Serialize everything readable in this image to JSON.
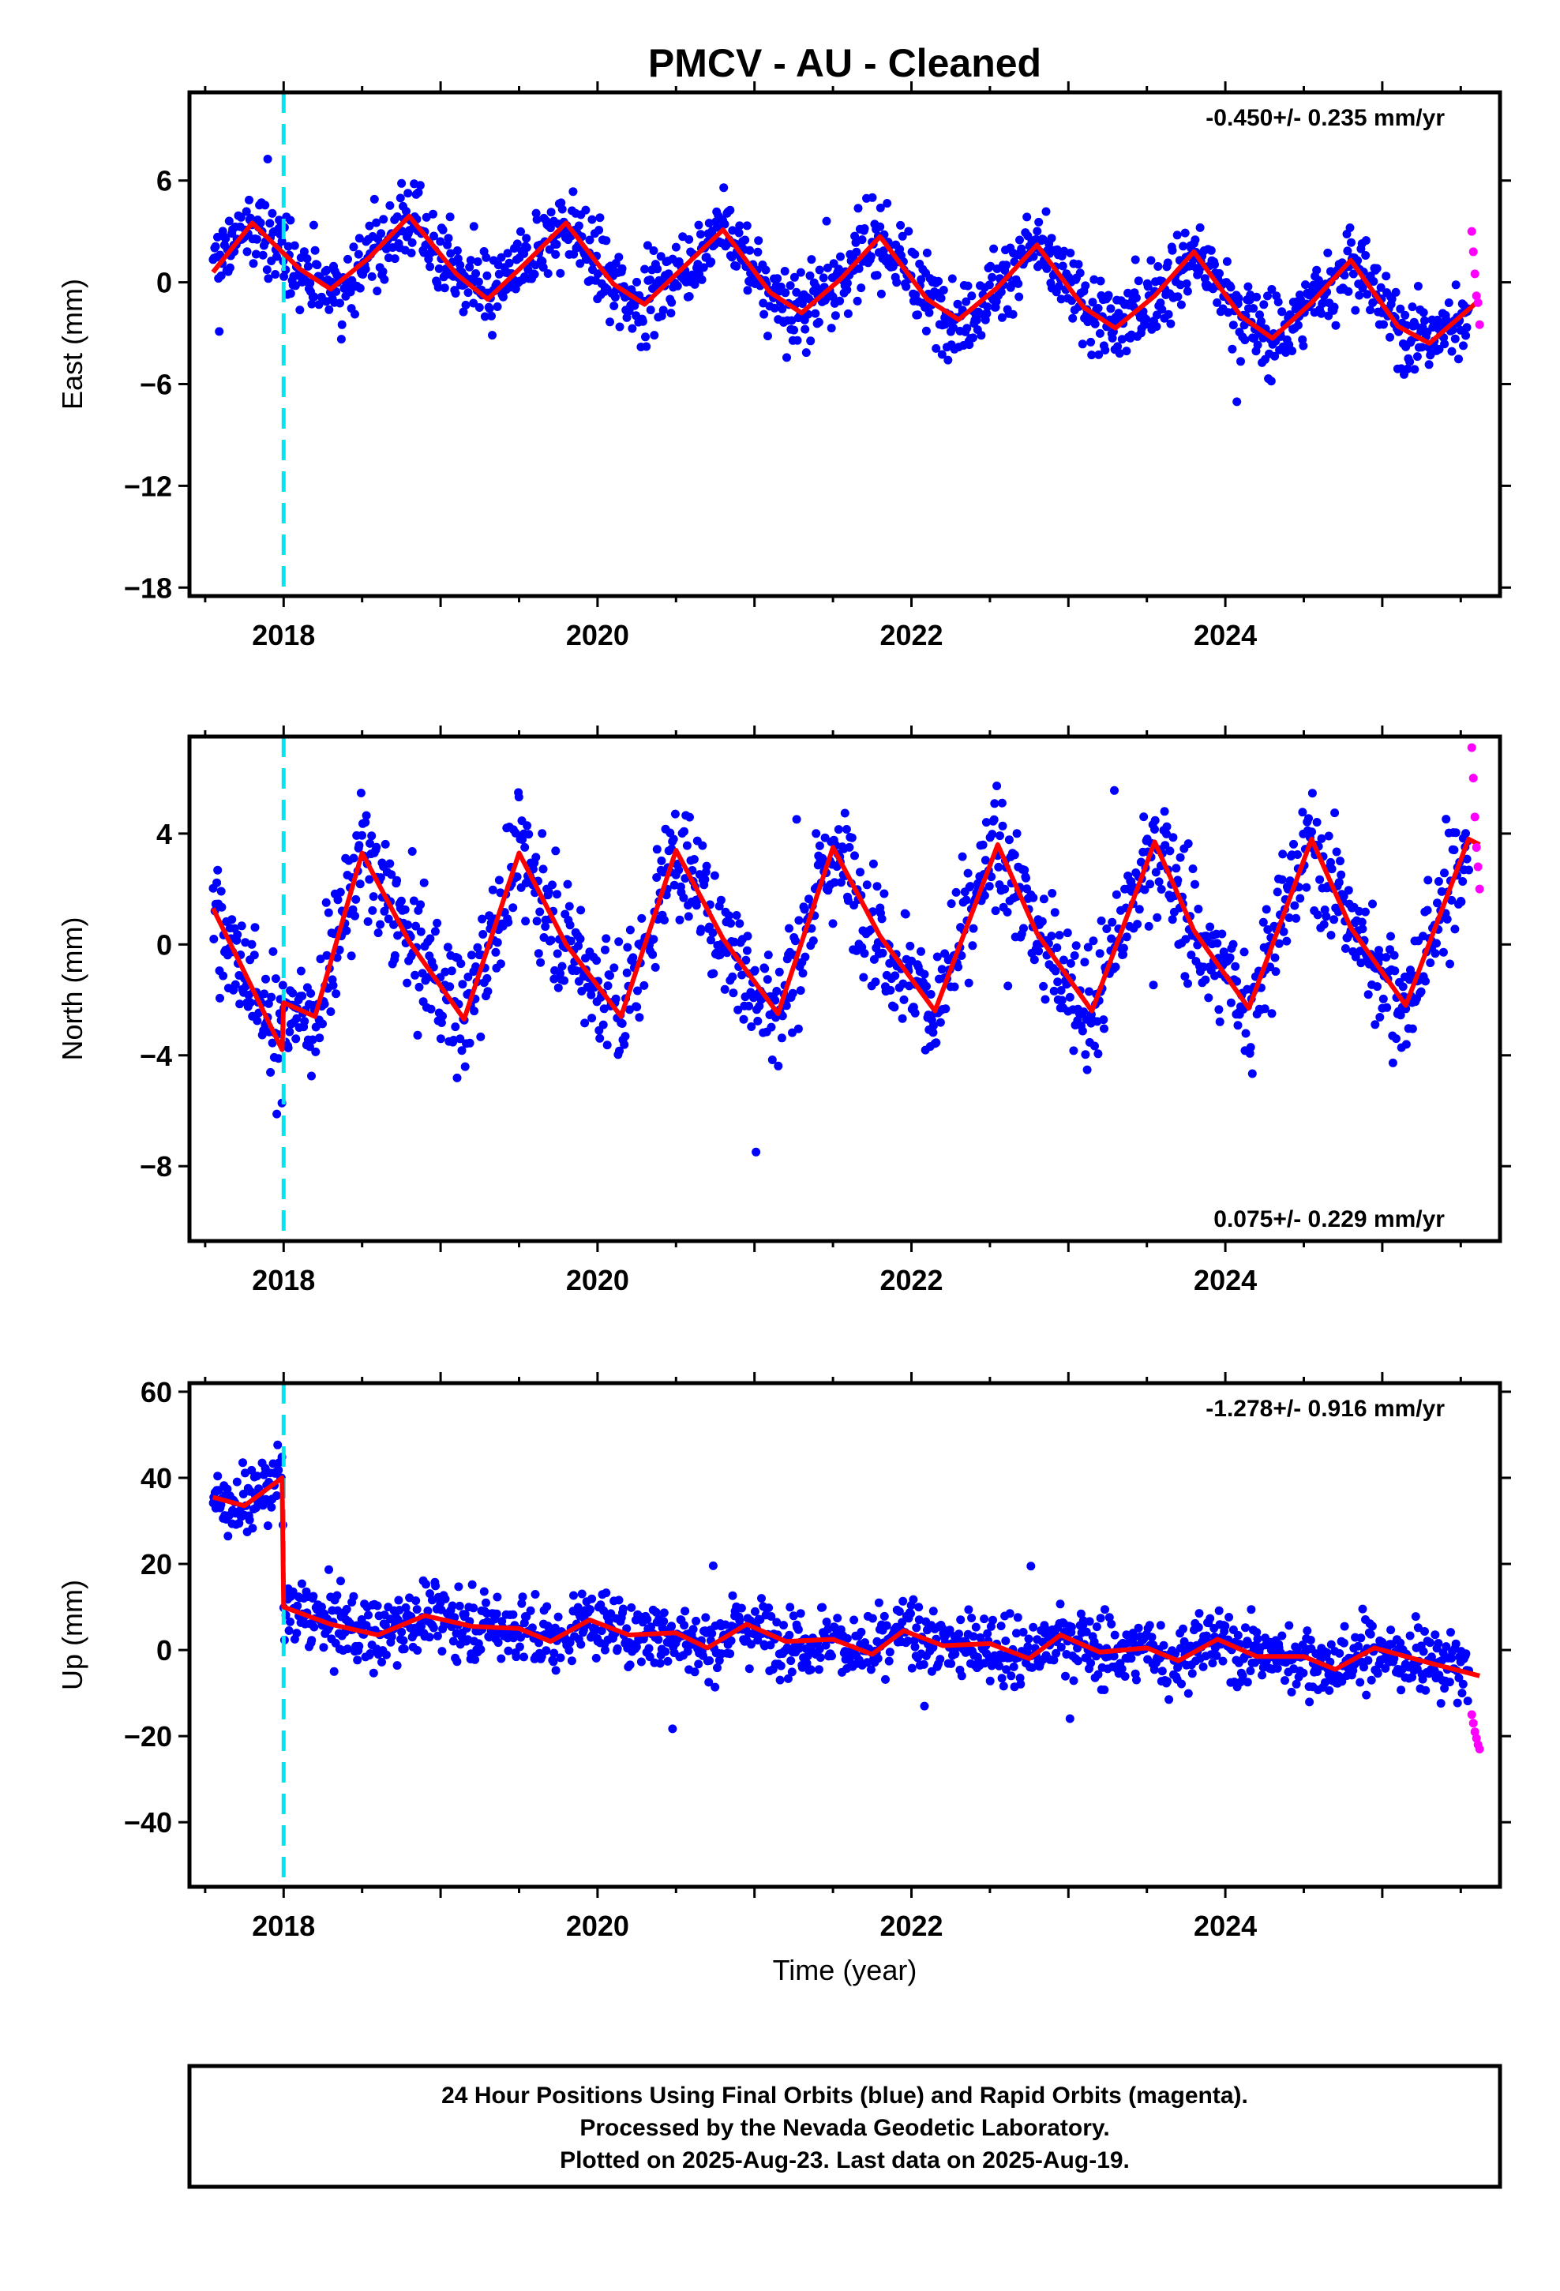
{
  "title": "PMCV  - AU - Cleaned",
  "xlabel": "Time (year)",
  "colors": {
    "final": "#0000ff",
    "rapid": "#ff00ff",
    "fit": "#ff0000",
    "event": "#00e5ee",
    "axes": "#000000"
  },
  "footer": {
    "line1": "24 Hour Positions Using Final Orbits (blue) and Rapid Orbits (magenta).",
    "line2": "Processed by the Nevada Geodetic Laboratory.",
    "line3": "Plotted on 2025-Aug-23. Last data on 2025-Aug-19."
  },
  "chart_data": [
    {
      "type": "scatter",
      "component": "East",
      "ylabel": "East (mm)",
      "rate_text": "-0.450+/- 0.235 mm/yr",
      "rate_position": "top-right",
      "xlim": [
        2017.4,
        2025.75
      ],
      "ylim": [
        -18.5,
        11.2
      ],
      "xticks": [
        2018,
        2020,
        2022,
        2024
      ],
      "yticks": [
        -18,
        -12,
        -6,
        0,
        6
      ],
      "event_lines": [
        2018.0
      ],
      "series": [
        {
          "role": "final",
          "x_range": [
            2017.55,
            2025.55
          ],
          "note_points": 2900
        },
        {
          "role": "rapid",
          "x": [
            2025.57,
            2025.58,
            2025.59,
            2025.6,
            2025.61,
            2025.62
          ],
          "y": [
            3.0,
            1.8,
            0.5,
            -0.8,
            -1.2,
            -2.5
          ]
        },
        {
          "role": "fit",
          "x": [
            2017.55,
            2017.8,
            2018.1,
            2018.3,
            2018.55,
            2018.8,
            2019.1,
            2019.3,
            2019.55,
            2019.8,
            2020.1,
            2020.3,
            2020.55,
            2020.8,
            2021.1,
            2021.3,
            2021.55,
            2021.8,
            2022.1,
            2022.3,
            2022.55,
            2022.8,
            2023.1,
            2023.3,
            2023.55,
            2023.8,
            2024.1,
            2024.3,
            2024.55,
            2024.8,
            2025.1,
            2025.3,
            2025.6
          ],
          "y": [
            0.6,
            3.5,
            0.8,
            -0.4,
            1.5,
            3.9,
            0.5,
            -1.0,
            1.2,
            3.5,
            -0.1,
            -1.3,
            0.9,
            3.1,
            -0.6,
            -1.8,
            0.2,
            2.7,
            -1.0,
            -2.2,
            -0.3,
            2.2,
            -1.5,
            -2.7,
            -0.8,
            1.8,
            -2.0,
            -3.3,
            -1.2,
            1.3,
            -2.6,
            -3.6,
            -1.2
          ]
        }
      ]
    },
    {
      "type": "scatter",
      "component": "North",
      "ylabel": "North (mm)",
      "rate_text": "0.075+/- 0.229 mm/yr",
      "rate_position": "bottom-right",
      "xlim": [
        2017.4,
        2025.75
      ],
      "ylim": [
        -10.7,
        7.5
      ],
      "xticks": [
        2018,
        2020,
        2022,
        2024
      ],
      "yticks": [
        -8,
        -4,
        0,
        4
      ],
      "event_lines": [
        2018.0
      ],
      "series": [
        {
          "role": "final",
          "x_range": [
            2017.55,
            2025.55
          ],
          "note_points": 2900
        },
        {
          "role": "rapid",
          "x": [
            2025.57,
            2025.58,
            2025.59,
            2025.6,
            2025.61,
            2025.62
          ],
          "y": [
            7.1,
            6.0,
            4.6,
            3.5,
            2.8,
            2.0
          ]
        },
        {
          "role": "fit",
          "x": [
            2017.55,
            2017.75,
            2017.99,
            2018.0,
            2018.2,
            2018.5,
            2018.8,
            2019.15,
            2019.5,
            2019.8,
            2020.15,
            2020.5,
            2020.8,
            2021.15,
            2021.5,
            2021.8,
            2022.15,
            2022.55,
            2022.8,
            2023.15,
            2023.55,
            2023.8,
            2024.15,
            2024.55,
            2024.8,
            2025.15,
            2025.55,
            2025.62
          ],
          "y": [
            1.3,
            -1.0,
            -3.8,
            -2.1,
            -2.6,
            3.3,
            0.1,
            -2.7,
            3.3,
            0.0,
            -2.6,
            3.4,
            0.2,
            -2.5,
            3.5,
            0.3,
            -2.4,
            3.6,
            0.4,
            -2.4,
            3.7,
            0.5,
            -2.3,
            3.8,
            0.6,
            -2.2,
            3.8,
            3.6
          ]
        }
      ]
    },
    {
      "type": "scatter",
      "component": "Up",
      "ylabel": "Up (mm)",
      "rate_text": "-1.278+/- 0.916 mm/yr",
      "rate_position": "top-right",
      "xlim": [
        2017.4,
        2025.75
      ],
      "ylim": [
        -55,
        62
      ],
      "xticks": [
        2018,
        2020,
        2022,
        2024
      ],
      "yticks": [
        -40,
        -20,
        0,
        20,
        40,
        60
      ],
      "event_lines": [
        2018.0
      ],
      "series": [
        {
          "role": "final",
          "x_range": [
            2017.55,
            2025.55
          ],
          "note_points": 2900
        },
        {
          "role": "rapid",
          "x": [
            2025.57,
            2025.58,
            2025.59,
            2025.6,
            2025.61,
            2025.62
          ],
          "y": [
            -15.0,
            -17.0,
            -19.0,
            -20.5,
            -22.0,
            -23.0
          ]
        },
        {
          "role": "fit",
          "x": [
            2017.55,
            2017.75,
            2017.99,
            2018.0,
            2018.3,
            2018.6,
            2018.9,
            2019.2,
            2019.5,
            2019.7,
            2019.95,
            2020.2,
            2020.5,
            2020.7,
            2020.95,
            2021.2,
            2021.5,
            2021.75,
            2021.95,
            2022.2,
            2022.5,
            2022.75,
            2022.95,
            2023.2,
            2023.5,
            2023.7,
            2023.95,
            2024.2,
            2024.5,
            2024.7,
            2024.95,
            2025.3,
            2025.62
          ],
          "y": [
            35.5,
            33.5,
            40.0,
            10.0,
            6.0,
            3.5,
            8.0,
            5.5,
            5.0,
            2.0,
            7.0,
            3.5,
            4.0,
            0.5,
            6.0,
            2.0,
            2.5,
            -1.0,
            4.5,
            1.0,
            1.5,
            -2.0,
            3.5,
            -0.5,
            0.5,
            -2.5,
            2.5,
            -1.5,
            -1.5,
            -4.5,
            0.5,
            -3.0,
            -6.0
          ]
        }
      ]
    }
  ]
}
